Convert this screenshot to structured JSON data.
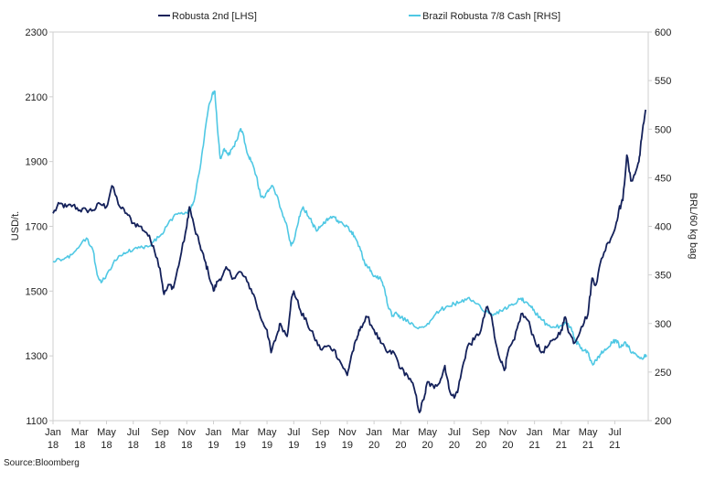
{
  "chart_data": {
    "type": "line",
    "title": "",
    "source": "Source:Bloomberg",
    "ylabel_left": "USD/t.",
    "ylabel_right": "BRL/60 kg bag",
    "ylim_left": [
      1100,
      2300
    ],
    "ylim_right": [
      200,
      600
    ],
    "yticks_left": [
      1100,
      1300,
      1500,
      1700,
      1900,
      2100,
      2300
    ],
    "yticks_right": [
      200,
      250,
      300,
      350,
      400,
      450,
      500,
      550,
      600
    ],
    "x_start": 0,
    "x_end": 44.5,
    "x_ticks": [
      {
        "t": 0,
        "line1": "Jan",
        "line2": "18"
      },
      {
        "t": 2,
        "line1": "Mar",
        "line2": "18"
      },
      {
        "t": 4,
        "line1": "May",
        "line2": "18"
      },
      {
        "t": 6,
        "line1": "Jul",
        "line2": "18"
      },
      {
        "t": 8,
        "line1": "Sep",
        "line2": "18"
      },
      {
        "t": 10,
        "line1": "Nov",
        "line2": "18"
      },
      {
        "t": 12,
        "line1": "Jan",
        "line2": "19"
      },
      {
        "t": 14,
        "line1": "Mar",
        "line2": "19"
      },
      {
        "t": 16,
        "line1": "May",
        "line2": "19"
      },
      {
        "t": 18,
        "line1": "Jul",
        "line2": "19"
      },
      {
        "t": 20,
        "line1": "Sep",
        "line2": "19"
      },
      {
        "t": 22,
        "line1": "Nov",
        "line2": "19"
      },
      {
        "t": 24,
        "line1": "Jan",
        "line2": "20"
      },
      {
        "t": 26,
        "line1": "Mar",
        "line2": "20"
      },
      {
        "t": 28,
        "line1": "May",
        "line2": "20"
      },
      {
        "t": 30,
        "line1": "Jul",
        "line2": "20"
      },
      {
        "t": 32,
        "line1": "Sep",
        "line2": "20"
      },
      {
        "t": 34,
        "line1": "Nov",
        "line2": "20"
      },
      {
        "t": 36,
        "line1": "Jan",
        "line2": "21"
      },
      {
        "t": 38,
        "line1": "Mar",
        "line2": "21"
      },
      {
        "t": 40,
        "line1": "May",
        "line2": "21"
      },
      {
        "t": 42,
        "line1": "Jul",
        "line2": "21"
      }
    ],
    "series": [
      {
        "name": "Robusta 2nd [LHS]",
        "axis": "left",
        "color": "#14215a",
        "points": [
          [
            0,
            1740
          ],
          [
            0.5,
            1770
          ],
          [
            1,
            1760
          ],
          [
            1.5,
            1765
          ],
          [
            2,
            1750
          ],
          [
            2.5,
            1750
          ],
          [
            3,
            1750
          ],
          [
            3.5,
            1770
          ],
          [
            4,
            1760
          ],
          [
            4.4,
            1825
          ],
          [
            5,
            1760
          ],
          [
            5.5,
            1740
          ],
          [
            6,
            1710
          ],
          [
            6.5,
            1700
          ],
          [
            7,
            1680
          ],
          [
            7.5,
            1640
          ],
          [
            8,
            1570
          ],
          [
            8.3,
            1490
          ],
          [
            8.7,
            1520
          ],
          [
            9,
            1510
          ],
          [
            9.5,
            1600
          ],
          [
            10,
            1700
          ],
          [
            10.2,
            1760
          ],
          [
            10.6,
            1690
          ],
          [
            11,
            1640
          ],
          [
            11.3,
            1600
          ],
          [
            11.6,
            1560
          ],
          [
            12,
            1500
          ],
          [
            12.3,
            1530
          ],
          [
            12.7,
            1550
          ],
          [
            13,
            1570
          ],
          [
            13.5,
            1540
          ],
          [
            14,
            1560
          ],
          [
            14.5,
            1530
          ],
          [
            15,
            1490
          ],
          [
            15.5,
            1420
          ],
          [
            16,
            1380
          ],
          [
            16.3,
            1310
          ],
          [
            16.7,
            1360
          ],
          [
            17,
            1400
          ],
          [
            17.5,
            1360
          ],
          [
            17.8,
            1470
          ],
          [
            18,
            1500
          ],
          [
            18.5,
            1440
          ],
          [
            19,
            1400
          ],
          [
            19.5,
            1360
          ],
          [
            20,
            1320
          ],
          [
            20.5,
            1330
          ],
          [
            21,
            1320
          ],
          [
            21.5,
            1280
          ],
          [
            22,
            1240
          ],
          [
            22.3,
            1300
          ],
          [
            22.7,
            1350
          ],
          [
            23,
            1390
          ],
          [
            23.5,
            1420
          ],
          [
            24,
            1380
          ],
          [
            24.5,
            1340
          ],
          [
            25,
            1310
          ],
          [
            25.5,
            1310
          ],
          [
            26,
            1260
          ],
          [
            26.5,
            1240
          ],
          [
            27,
            1200
          ],
          [
            27.4,
            1125
          ],
          [
            27.8,
            1180
          ],
          [
            28,
            1220
          ],
          [
            28.5,
            1200
          ],
          [
            29,
            1230
          ],
          [
            29.3,
            1270
          ],
          [
            29.6,
            1200
          ],
          [
            30,
            1170
          ],
          [
            30.3,
            1200
          ],
          [
            30.7,
            1280
          ],
          [
            31,
            1330
          ],
          [
            31.5,
            1350
          ],
          [
            32,
            1380
          ],
          [
            32.4,
            1450
          ],
          [
            32.8,
            1420
          ],
          [
            33,
            1360
          ],
          [
            33.5,
            1280
          ],
          [
            33.8,
            1260
          ],
          [
            34,
            1310
          ],
          [
            34.5,
            1350
          ],
          [
            35,
            1430
          ],
          [
            35.5,
            1410
          ],
          [
            36,
            1350
          ],
          [
            36.5,
            1310
          ],
          [
            37,
            1330
          ],
          [
            37.5,
            1350
          ],
          [
            38,
            1380
          ],
          [
            38.3,
            1420
          ],
          [
            38.6,
            1370
          ],
          [
            39,
            1340
          ],
          [
            39.5,
            1390
          ],
          [
            40,
            1430
          ],
          [
            40.3,
            1540
          ],
          [
            40.6,
            1520
          ],
          [
            41,
            1600
          ],
          [
            41.5,
            1650
          ],
          [
            42,
            1690
          ],
          [
            42.3,
            1750
          ],
          [
            42.6,
            1780
          ],
          [
            42.9,
            1920
          ],
          [
            43.2,
            1840
          ],
          [
            43.5,
            1860
          ],
          [
            43.8,
            1900
          ],
          [
            44,
            1970
          ],
          [
            44.3,
            2060
          ]
        ]
      },
      {
        "name": "Brazil Robusta 7/8 Cash [RHS]",
        "axis": "right",
        "color": "#4fc8e4",
        "points": [
          [
            0,
            364
          ],
          [
            0.5,
            366
          ],
          [
            1,
            368
          ],
          [
            1.5,
            372
          ],
          [
            2,
            380
          ],
          [
            2.5,
            388
          ],
          [
            3,
            375
          ],
          [
            3.3,
            350
          ],
          [
            3.6,
            342
          ],
          [
            4,
            350
          ],
          [
            4.5,
            362
          ],
          [
            5,
            370
          ],
          [
            5.5,
            373
          ],
          [
            6,
            376
          ],
          [
            6.5,
            378
          ],
          [
            7,
            380
          ],
          [
            7.5,
            384
          ],
          [
            8,
            390
          ],
          [
            8.5,
            400
          ],
          [
            9,
            410
          ],
          [
            9.5,
            413
          ],
          [
            10,
            414
          ],
          [
            10.3,
            418
          ],
          [
            10.6,
            430
          ],
          [
            11,
            460
          ],
          [
            11.3,
            490
          ],
          [
            11.6,
            520
          ],
          [
            11.9,
            536
          ],
          [
            12.1,
            539
          ],
          [
            12.3,
            500
          ],
          [
            12.5,
            470
          ],
          [
            12.8,
            480
          ],
          [
            13.1,
            473
          ],
          [
            13.4,
            480
          ],
          [
            13.8,
            490
          ],
          [
            14,
            500
          ],
          [
            14.2,
            496
          ],
          [
            14.5,
            476
          ],
          [
            14.8,
            467
          ],
          [
            15.2,
            452
          ],
          [
            15.5,
            432
          ],
          [
            15.8,
            430
          ],
          [
            16.1,
            436
          ],
          [
            16.4,
            442
          ],
          [
            16.8,
            430
          ],
          [
            17.2,
            410
          ],
          [
            17.5,
            400
          ],
          [
            17.8,
            380
          ],
          [
            18.1,
            390
          ],
          [
            18.4,
            410
          ],
          [
            18.7,
            420
          ],
          [
            19.1,
            410
          ],
          [
            19.4,
            403
          ],
          [
            19.7,
            395
          ],
          [
            20,
            400
          ],
          [
            20.3,
            403
          ],
          [
            20.6,
            408
          ],
          [
            21,
            410
          ],
          [
            21.3,
            406
          ],
          [
            21.6,
            404
          ],
          [
            22,
            400
          ],
          [
            22.3,
            395
          ],
          [
            22.6,
            388
          ],
          [
            23,
            375
          ],
          [
            23.3,
            362
          ],
          [
            23.6,
            358
          ],
          [
            23.9,
            350
          ],
          [
            24.2,
            347
          ],
          [
            24.5,
            346
          ],
          [
            24.8,
            335
          ],
          [
            25.1,
            315
          ],
          [
            25.4,
            308
          ],
          [
            25.7,
            310
          ],
          [
            26,
            306
          ],
          [
            26.5,
            304
          ],
          [
            27,
            297
          ],
          [
            27.5,
            296
          ],
          [
            28,
            300
          ],
          [
            28.5,
            308
          ],
          [
            29,
            314
          ],
          [
            29.5,
            318
          ],
          [
            30,
            320
          ],
          [
            30.5,
            322
          ],
          [
            31,
            326
          ],
          [
            31.5,
            322
          ],
          [
            32,
            316
          ],
          [
            32.5,
            312
          ],
          [
            33,
            310
          ],
          [
            33.5,
            313
          ],
          [
            34,
            316
          ],
          [
            34.5,
            320
          ],
          [
            35,
            326
          ],
          [
            35.3,
            322
          ],
          [
            35.7,
            318
          ],
          [
            36,
            312
          ],
          [
            36.5,
            304
          ],
          [
            37,
            298
          ],
          [
            37.5,
            296
          ],
          [
            38,
            298
          ],
          [
            38.5,
            300
          ],
          [
            38.8,
            292
          ],
          [
            39.1,
            282
          ],
          [
            39.4,
            276
          ],
          [
            39.7,
            272
          ],
          [
            40,
            270
          ],
          [
            40.2,
            262
          ],
          [
            40.4,
            258
          ],
          [
            40.6,
            262
          ],
          [
            40.9,
            268
          ],
          [
            41.2,
            272
          ],
          [
            41.5,
            275
          ],
          [
            41.8,
            280
          ],
          [
            42.1,
            283
          ],
          [
            42.4,
            276
          ],
          [
            42.7,
            280
          ],
          [
            43,
            276
          ],
          [
            43.3,
            270
          ],
          [
            43.6,
            268
          ],
          [
            43.9,
            264
          ],
          [
            44.2,
            266
          ],
          [
            44.4,
            266
          ]
        ]
      }
    ]
  }
}
